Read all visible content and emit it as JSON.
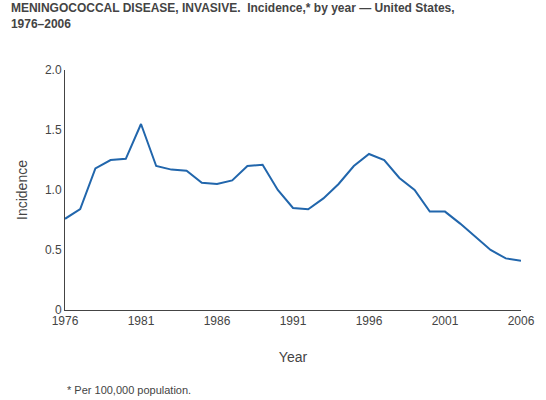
{
  "chart_data": {
    "type": "line",
    "title": "MENINGOCOCCAL DISEASE, INVASIVE.  Incidence,* by year — United States,\n1976–2006",
    "x_label": "Year",
    "y_label": "Incidence",
    "annotations": [
      "* Per 100,000 population."
    ],
    "x": [
      1976,
      1977,
      1978,
      1979,
      1980,
      1981,
      1982,
      1983,
      1984,
      1985,
      1986,
      1987,
      1988,
      1989,
      1990,
      1991,
      1992,
      1993,
      1994,
      1995,
      1996,
      1997,
      1998,
      1999,
      2000,
      2001,
      2002,
      2003,
      2004,
      2005,
      2006
    ],
    "values": [
      0.76,
      0.84,
      1.18,
      1.25,
      1.26,
      1.55,
      1.2,
      1.17,
      1.16,
      1.06,
      1.05,
      1.08,
      1.2,
      1.21,
      1.0,
      0.85,
      0.84,
      0.93,
      1.05,
      1.2,
      1.3,
      1.25,
      1.1,
      1.0,
      0.82,
      0.82,
      0.72,
      0.61,
      0.5,
      0.43,
      0.41
    ],
    "color": "#2166ac",
    "xlim": [
      1976,
      2006
    ],
    "ylim": [
      0,
      2.0
    ],
    "xticks": [
      1976,
      1981,
      1986,
      1991,
      1996,
      2001,
      2006
    ],
    "yticks": [
      0,
      0.5,
      {
        "value": 1.0,
        "label": "1.0"
      },
      1.5,
      {
        "value": 2.0,
        "label": "2.0"
      }
    ],
    "grid": false
  }
}
